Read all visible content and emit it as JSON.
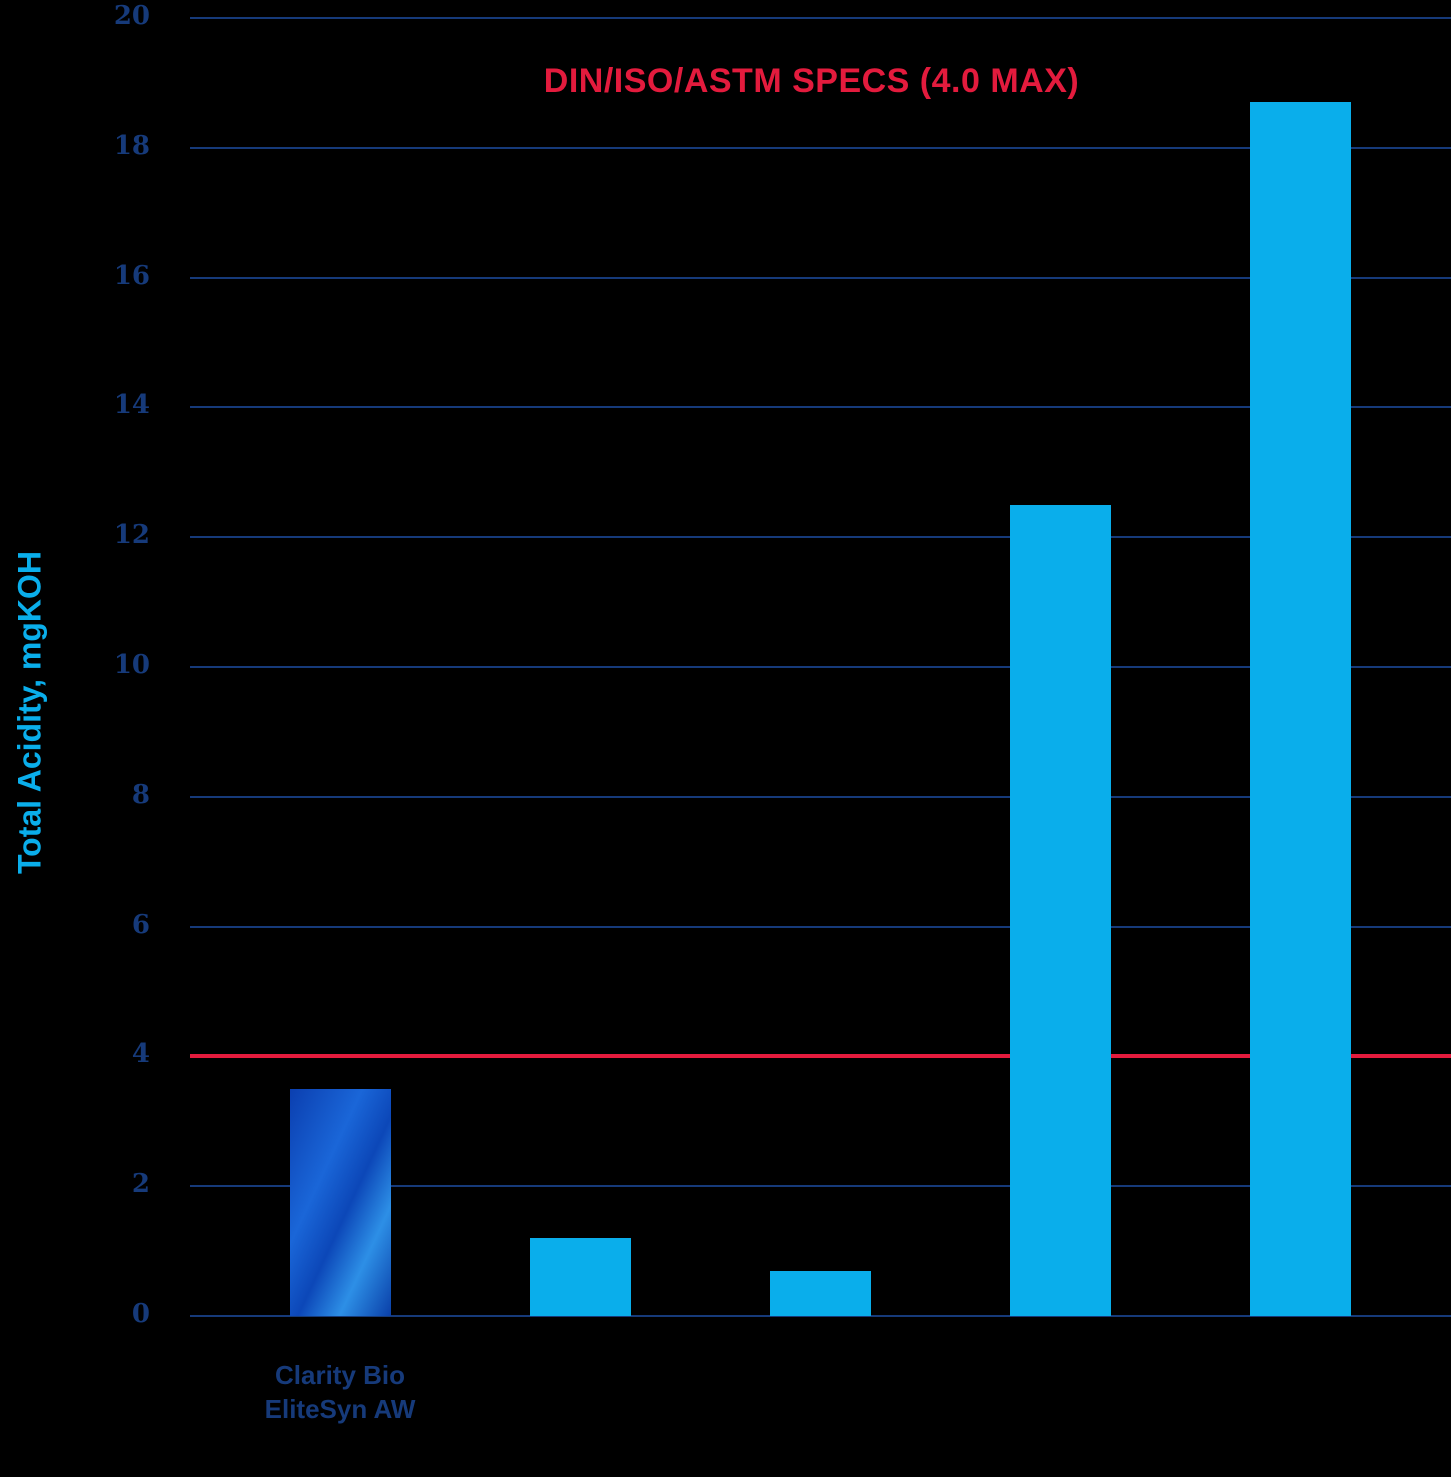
{
  "chart_data": {
    "type": "bar",
    "title": "DIN/ISO/ASTM SPECS (4.0 MAX)",
    "xlabel": "",
    "ylabel": "Total Acidity, mgKOH",
    "ylim": [
      0,
      20
    ],
    "yticks": [
      "0",
      "2",
      "4",
      "6",
      "8",
      "10",
      "12",
      "14",
      "16",
      "18",
      "20"
    ],
    "grid": true,
    "categories": [
      "Clarity Bio EliteSyn AW",
      "",
      "",
      "",
      ""
    ],
    "category_lines": [
      [
        "Clarity Bio",
        "EliteSyn AW"
      ]
    ],
    "values": [
      3.5,
      1.2,
      0.7,
      12.5,
      18.7
    ],
    "reference_line": {
      "value": 4.0,
      "label": "DIN/ISO/ASTM SPECS (4.0 MAX)",
      "color": "#e31b3d"
    },
    "colors": {
      "featured": "#1a56c8",
      "others": "#0aaeeb",
      "grid": "#163a7a",
      "axis_text": "#163a7a",
      "ylabel": "#0aaeeb"
    }
  }
}
